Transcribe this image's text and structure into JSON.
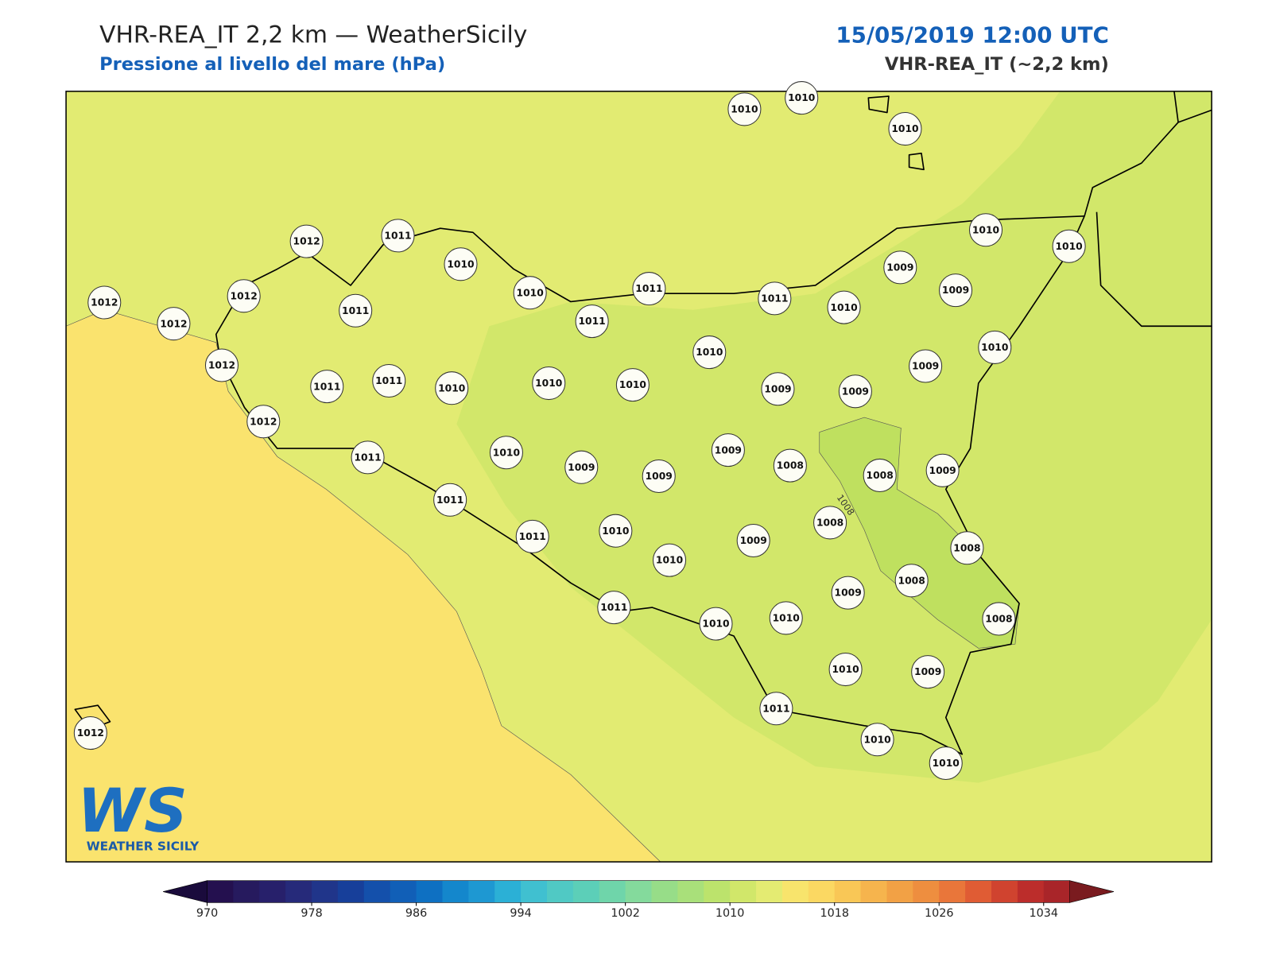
{
  "header": {
    "title": "VHR-REA_IT 2,2 km — WeatherSicily",
    "subtitle": "Pressione al livello del mare (hPa)",
    "datetime": "15/05/2019 12:00 UTC",
    "model": "VHR-REA_IT (~2,2 km)"
  },
  "map": {
    "contour_label": "1008",
    "stations": [
      1010,
      1010,
      1010,
      1012,
      1011,
      1010,
      1010,
      1010,
      1012,
      1012,
      1012,
      1011,
      1010,
      1011,
      1011,
      1011,
      1010,
      1009,
      1009,
      1010,
      1012,
      1011,
      1011,
      1010,
      1010,
      1010,
      1010,
      1009,
      1009,
      1009,
      1012,
      1011,
      1010,
      1009,
      1009,
      1009,
      1008,
      1008,
      1009,
      1011,
      1011,
      1010,
      1010,
      1009,
      1008,
      1008,
      1008,
      1009,
      1010,
      1010,
      1011,
      1008,
      1010,
      1009,
      1011,
      1010,
      1010,
      1012
    ]
  },
  "logo": {
    "mark": "WS",
    "name": "WEATHER SICILY"
  },
  "colorbar": {
    "lim": [
      970,
      1036
    ],
    "ticks": [
      970,
      978,
      986,
      994,
      1002,
      1010,
      1018,
      1026,
      1034
    ],
    "colors": [
      "#24104f",
      "#261a5e",
      "#27206b",
      "#262a7a",
      "#20358a",
      "#173f9a",
      "#1450ab",
      "#115fb7",
      "#0e70c2",
      "#1487cc",
      "#1e98d2",
      "#2bb0d6",
      "#40c0d0",
      "#50c9c4",
      "#5ccfb8",
      "#6fd5aa",
      "#84da9c",
      "#97dd88",
      "#a9e07a",
      "#bce36c",
      "#d1e76a",
      "#e4eb72",
      "#f8e46c",
      "#fbd862",
      "#f9c756",
      "#f6b44d",
      "#f2a145",
      "#ee8e3f",
      "#e9763a",
      "#e05c34",
      "#d0432f",
      "#bc2d2b",
      "#a92529"
    ],
    "under_color": "#1a0b3c",
    "over_color": "#7a1b1f"
  }
}
